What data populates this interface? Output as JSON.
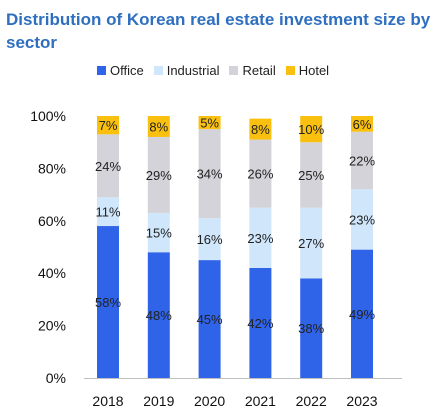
{
  "chart_data": {
    "type": "bar",
    "stacked": true,
    "title": "Distribution of Korean real estate investment size by sector",
    "categories": [
      "2018",
      "2019",
      "2020",
      "2021",
      "2022",
      "2023"
    ],
    "series": [
      {
        "name": "Office",
        "color": "#2f63e8",
        "values": [
          58,
          48,
          45,
          42,
          38,
          49
        ],
        "labels": [
          "58%",
          "48%",
          "45%",
          "42%",
          "38%",
          "49%"
        ]
      },
      {
        "name": "Industrial",
        "color": "#cfe6fb",
        "values": [
          11,
          15,
          16,
          23,
          27,
          23
        ],
        "labels": [
          "11%",
          "15%",
          "16%",
          "23%",
          "27%",
          "23%"
        ]
      },
      {
        "name": "Retail",
        "color": "#d3d3d9",
        "values": [
          24,
          29,
          34,
          26,
          25,
          22
        ],
        "labels": [
          "24%",
          "29%",
          "34%",
          "26%",
          "25%",
          "22%"
        ]
      },
      {
        "name": "Hotel",
        "color": "#f9c00f",
        "values": [
          7,
          8,
          5,
          8,
          10,
          6
        ],
        "labels": [
          "7%",
          "8%",
          "5%",
          "8%",
          "10%",
          "6%"
        ]
      }
    ],
    "ylim": [
      0,
      100
    ],
    "yticks": [
      0,
      20,
      40,
      60,
      80,
      100
    ],
    "ytick_labels": [
      "0%",
      "20%",
      "40%",
      "60%",
      "80%",
      "100%"
    ],
    "xlabel": "",
    "ylabel": "",
    "grid": false,
    "legend_position": "top"
  }
}
